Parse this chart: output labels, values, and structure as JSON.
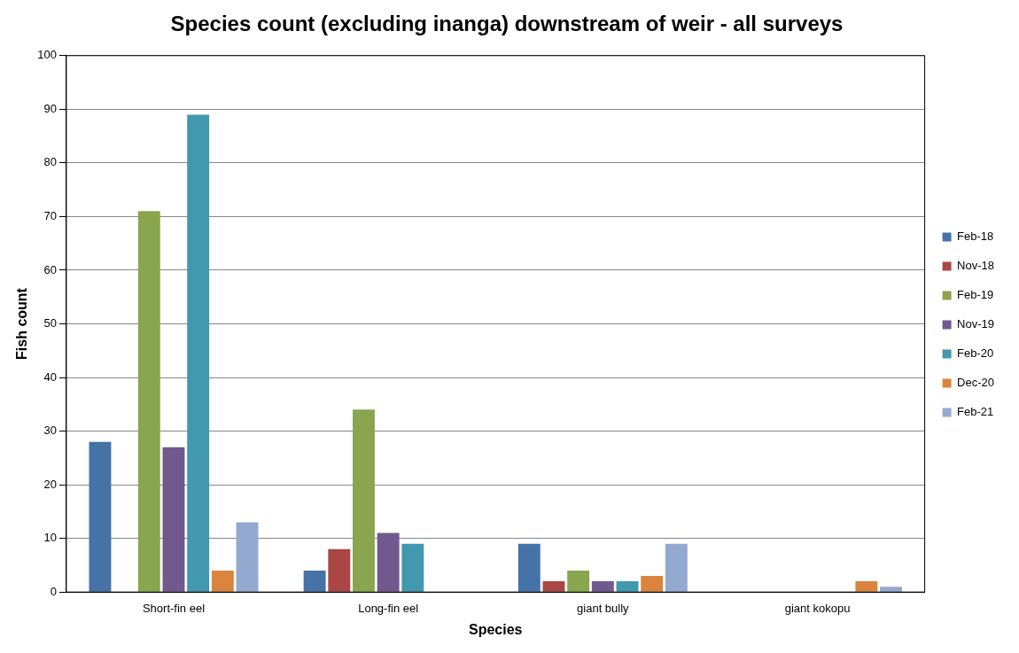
{
  "chart_data": {
    "type": "bar",
    "title": "Species count (excluding inanga) downstream of weir - all surveys",
    "xlabel": "Species",
    "ylabel": "Fish count",
    "categories": [
      "Short-fin eel",
      "Long-fin eel",
      "giant bully",
      "giant kokopu"
    ],
    "series": [
      {
        "name": "Feb-18",
        "color": "#4572a7",
        "values": [
          28,
          4,
          9,
          0
        ]
      },
      {
        "name": "Nov-18",
        "color": "#aa4643",
        "values": [
          0,
          8,
          2,
          0
        ]
      },
      {
        "name": "Feb-19",
        "color": "#89a54e",
        "values": [
          71,
          34,
          4,
          0
        ]
      },
      {
        "name": "Nov-19",
        "color": "#71588f",
        "values": [
          27,
          11,
          2,
          0
        ]
      },
      {
        "name": "Feb-20",
        "color": "#4198af",
        "values": [
          89,
          9,
          2,
          0
        ]
      },
      {
        "name": "Dec-20",
        "color": "#db843d",
        "values": [
          4,
          0,
          3,
          2
        ]
      },
      {
        "name": "Feb-21",
        "color": "#93a9cf",
        "values": [
          13,
          0,
          9,
          1
        ]
      }
    ],
    "ylim": [
      0,
      100
    ],
    "yticks": [
      0,
      10,
      20,
      30,
      40,
      50,
      60,
      70,
      80,
      90,
      100
    ],
    "grid": "y",
    "legend": "right"
  }
}
